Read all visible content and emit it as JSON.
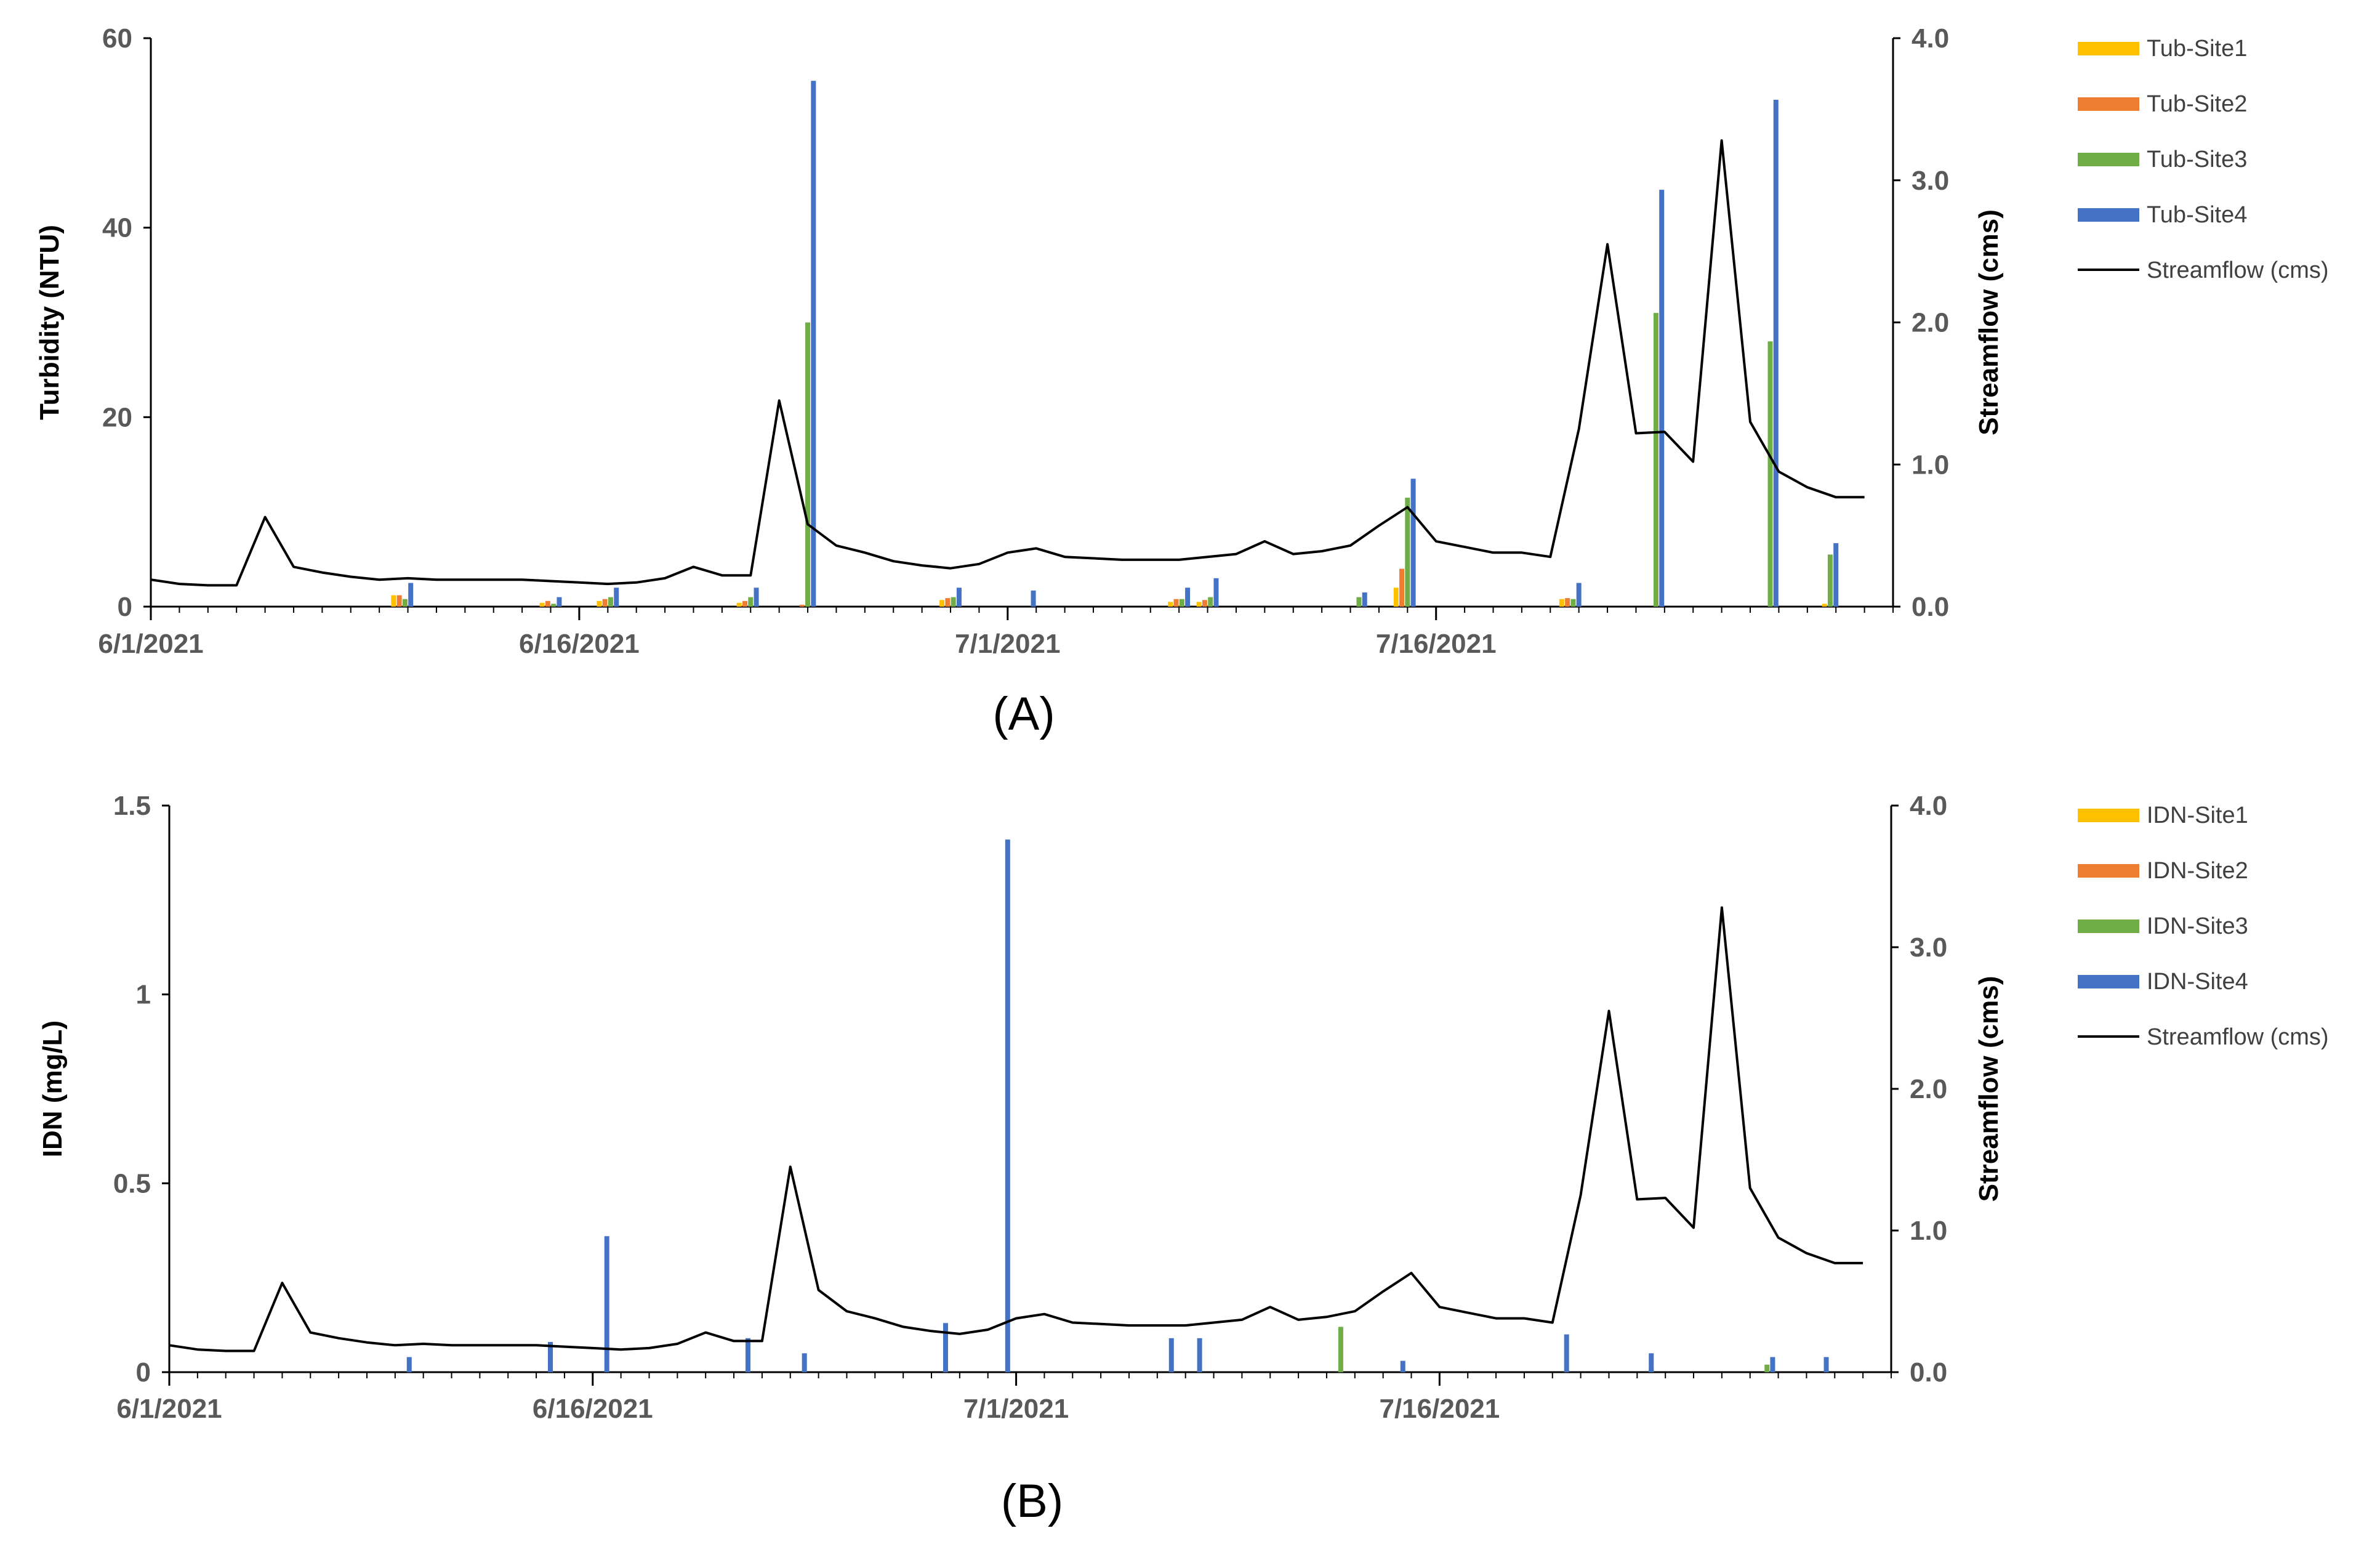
{
  "chart_data": [
    {
      "type": "bar",
      "panel_label": "(A)",
      "ylabel": "Turbidity (NTU)",
      "y2label": "Streamflow (cms)",
      "ylim": [
        0,
        60
      ],
      "yticks": [
        "0",
        "20",
        "40",
        "60"
      ],
      "y2lim": [
        0,
        4.0
      ],
      "y2ticks": [
        "0.0",
        "1.0",
        "2.0",
        "3.0",
        "4.0"
      ],
      "xlim_days": [
        0,
        61
      ],
      "xticks": [
        {
          "label": "6/1/2021",
          "day": 0
        },
        {
          "label": "6/16/2021",
          "day": 15
        },
        {
          "label": "7/1/2021",
          "day": 30
        },
        {
          "label": "7/16/2021",
          "day": 45
        }
      ],
      "legend_position": "right",
      "series": [
        {
          "name": "Tub-Site1",
          "color": "#FFC000",
          "points": [
            [
              8.5,
              1.2
            ],
            [
              13.7,
              0.4
            ],
            [
              15.7,
              0.6
            ],
            [
              20.6,
              0.4
            ],
            [
              27.7,
              0.7
            ],
            [
              35.7,
              0.5
            ],
            [
              36.7,
              0.5
            ],
            [
              43.6,
              2.0
            ],
            [
              49.4,
              0.8
            ],
            [
              58.6,
              0.3
            ]
          ]
        },
        {
          "name": "Tub-Site2",
          "color": "#ED7D31",
          "points": [
            [
              8.7,
              1.2
            ],
            [
              13.9,
              0.6
            ],
            [
              15.9,
              0.8
            ],
            [
              20.8,
              0.6
            ],
            [
              22.8,
              0.2
            ],
            [
              27.9,
              0.9
            ],
            [
              35.9,
              0.8
            ],
            [
              36.9,
              0.7
            ],
            [
              43.8,
              4.0
            ],
            [
              49.6,
              0.9
            ]
          ]
        },
        {
          "name": "Tub-Site3",
          "color": "#70AD47",
          "points": [
            [
              8.9,
              0.8
            ],
            [
              14.1,
              0.3
            ],
            [
              16.1,
              1.0
            ],
            [
              21.0,
              1.0
            ],
            [
              23.0,
              30.0
            ],
            [
              28.1,
              1.0
            ],
            [
              36.1,
              0.8
            ],
            [
              37.1,
              1.0
            ],
            [
              42.3,
              1.0
            ],
            [
              44.0,
              11.5
            ],
            [
              49.8,
              0.8
            ],
            [
              52.7,
              31.0
            ],
            [
              56.7,
              28.0
            ],
            [
              58.8,
              5.5
            ]
          ]
        },
        {
          "name": "Tub-Site4",
          "color": "#4472C4",
          "points": [
            [
              9.1,
              2.5
            ],
            [
              14.3,
              1.0
            ],
            [
              16.3,
              2.0
            ],
            [
              21.2,
              2.0
            ],
            [
              23.2,
              55.5
            ],
            [
              28.3,
              2.0
            ],
            [
              30.9,
              1.7
            ],
            [
              36.3,
              2.0
            ],
            [
              37.3,
              3.0
            ],
            [
              42.5,
              1.5
            ],
            [
              44.2,
              13.5
            ],
            [
              50.0,
              2.5
            ],
            [
              52.9,
              44.0
            ],
            [
              56.9,
              53.5
            ],
            [
              59.0,
              6.7
            ]
          ]
        }
      ],
      "line": {
        "name": "Streamflow (cms)",
        "color": "#000000",
        "points": [
          [
            0,
            0.19
          ],
          [
            1,
            0.16
          ],
          [
            2,
            0.15
          ],
          [
            3,
            0.15
          ],
          [
            4,
            0.63
          ],
          [
            5,
            0.28
          ],
          [
            6,
            0.24
          ],
          [
            7,
            0.21
          ],
          [
            8,
            0.19
          ],
          [
            9,
            0.2
          ],
          [
            10,
            0.19
          ],
          [
            11,
            0.19
          ],
          [
            12,
            0.19
          ],
          [
            13,
            0.19
          ],
          [
            14,
            0.18
          ],
          [
            15,
            0.17
          ],
          [
            16,
            0.16
          ],
          [
            17,
            0.17
          ],
          [
            18,
            0.2
          ],
          [
            19,
            0.28
          ],
          [
            20,
            0.22
          ],
          [
            21,
            0.22
          ],
          [
            22,
            1.45
          ],
          [
            23,
            0.58
          ],
          [
            24,
            0.43
          ],
          [
            25,
            0.38
          ],
          [
            26,
            0.32
          ],
          [
            27,
            0.29
          ],
          [
            28,
            0.27
          ],
          [
            29,
            0.3
          ],
          [
            30,
            0.38
          ],
          [
            31,
            0.41
          ],
          [
            32,
            0.35
          ],
          [
            33,
            0.34
          ],
          [
            34,
            0.33
          ],
          [
            35,
            0.33
          ],
          [
            36,
            0.33
          ],
          [
            37,
            0.35
          ],
          [
            38,
            0.37
          ],
          [
            39,
            0.46
          ],
          [
            40,
            0.37
          ],
          [
            41,
            0.39
          ],
          [
            42,
            0.43
          ],
          [
            43,
            0.57
          ],
          [
            44,
            0.7
          ],
          [
            45,
            0.46
          ],
          [
            46,
            0.42
          ],
          [
            47,
            0.38
          ],
          [
            48,
            0.38
          ],
          [
            49,
            0.35
          ],
          [
            50,
            1.25
          ],
          [
            51,
            2.55
          ],
          [
            52,
            1.22
          ],
          [
            53,
            1.23
          ],
          [
            54,
            1.02
          ],
          [
            55,
            3.28
          ],
          [
            56,
            1.3
          ],
          [
            57,
            0.95
          ],
          [
            58,
            0.84
          ],
          [
            59,
            0.77
          ],
          [
            60,
            0.77
          ]
        ]
      }
    },
    {
      "type": "bar",
      "panel_label": "(B)",
      "ylabel": "IDN (mg/L)",
      "y2label": "Streamflow (cms)",
      "ylim": [
        0,
        1.5
      ],
      "yticks": [
        "0",
        "0.5",
        "1",
        "1.5"
      ],
      "y2lim": [
        0,
        4.0
      ],
      "y2ticks": [
        "0.0",
        "1.0",
        "2.0",
        "3.0",
        "4.0"
      ],
      "xlim_days": [
        0,
        61
      ],
      "xticks": [
        {
          "label": "6/1/2021",
          "day": 0
        },
        {
          "label": "6/16/2021",
          "day": 15
        },
        {
          "label": "7/1/2021",
          "day": 30
        },
        {
          "label": "7/16/2021",
          "day": 45
        }
      ],
      "legend_position": "right",
      "series": [
        {
          "name": "IDN-Site1",
          "color": "#FFC000",
          "points": []
        },
        {
          "name": "IDN-Site2",
          "color": "#ED7D31",
          "points": []
        },
        {
          "name": "IDN-Site3",
          "color": "#70AD47",
          "points": [
            [
              41.5,
              0.12
            ],
            [
              52.5,
              0.01
            ],
            [
              56.6,
              0.02
            ]
          ]
        },
        {
          "name": "IDN-Site4",
          "color": "#4472C4",
          "points": [
            [
              8.5,
              0.04
            ],
            [
              13.5,
              0.08
            ],
            [
              15.5,
              0.36
            ],
            [
              20.5,
              0.09
            ],
            [
              22.5,
              0.05
            ],
            [
              27.5,
              0.13
            ],
            [
              29.7,
              1.41
            ],
            [
              35.5,
              0.09
            ],
            [
              36.5,
              0.09
            ],
            [
              43.7,
              0.03
            ],
            [
              49.5,
              0.1
            ],
            [
              52.5,
              0.05
            ],
            [
              56.8,
              0.04
            ],
            [
              58.7,
              0.04
            ]
          ]
        }
      ],
      "line": {
        "name": "Streamflow (cms)",
        "color": "#000000",
        "points": [
          [
            0,
            0.19
          ],
          [
            1,
            0.16
          ],
          [
            2,
            0.15
          ],
          [
            3,
            0.15
          ],
          [
            4,
            0.63
          ],
          [
            5,
            0.28
          ],
          [
            6,
            0.24
          ],
          [
            7,
            0.21
          ],
          [
            8,
            0.19
          ],
          [
            9,
            0.2
          ],
          [
            10,
            0.19
          ],
          [
            11,
            0.19
          ],
          [
            12,
            0.19
          ],
          [
            13,
            0.19
          ],
          [
            14,
            0.18
          ],
          [
            15,
            0.17
          ],
          [
            16,
            0.16
          ],
          [
            17,
            0.17
          ],
          [
            18,
            0.2
          ],
          [
            19,
            0.28
          ],
          [
            20,
            0.22
          ],
          [
            21,
            0.22
          ],
          [
            22,
            1.45
          ],
          [
            23,
            0.58
          ],
          [
            24,
            0.43
          ],
          [
            25,
            0.38
          ],
          [
            26,
            0.32
          ],
          [
            27,
            0.29
          ],
          [
            28,
            0.27
          ],
          [
            29,
            0.3
          ],
          [
            30,
            0.38
          ],
          [
            31,
            0.41
          ],
          [
            32,
            0.35
          ],
          [
            33,
            0.34
          ],
          [
            34,
            0.33
          ],
          [
            35,
            0.33
          ],
          [
            36,
            0.33
          ],
          [
            37,
            0.35
          ],
          [
            38,
            0.37
          ],
          [
            39,
            0.46
          ],
          [
            40,
            0.37
          ],
          [
            41,
            0.39
          ],
          [
            42,
            0.43
          ],
          [
            43,
            0.57
          ],
          [
            44,
            0.7
          ],
          [
            45,
            0.46
          ],
          [
            46,
            0.42
          ],
          [
            47,
            0.38
          ],
          [
            48,
            0.38
          ],
          [
            49,
            0.35
          ],
          [
            50,
            1.25
          ],
          [
            51,
            2.55
          ],
          [
            52,
            1.22
          ],
          [
            53,
            1.23
          ],
          [
            54,
            1.02
          ],
          [
            55,
            3.28
          ],
          [
            56,
            1.3
          ],
          [
            57,
            0.95
          ],
          [
            58,
            0.84
          ],
          [
            59,
            0.77
          ],
          [
            60,
            0.77
          ]
        ]
      }
    }
  ]
}
